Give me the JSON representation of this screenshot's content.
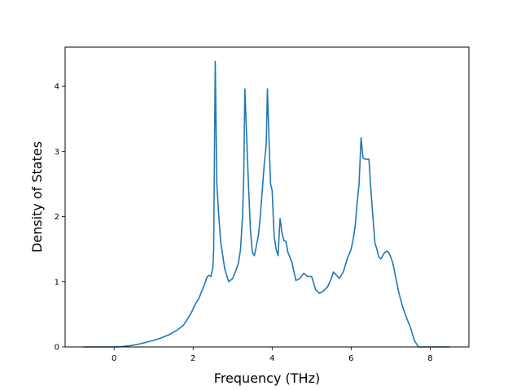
{
  "chart_data": {
    "type": "line",
    "title": "",
    "xlabel": "Frequency (THz)",
    "ylabel": "Density of States",
    "xlim": [
      -1.24,
      8.98
    ],
    "ylim": [
      0,
      4.6
    ],
    "xticks": [
      0,
      2,
      4,
      6,
      8
    ],
    "yticks": [
      0,
      1,
      2,
      3,
      4
    ],
    "grid": false,
    "legend": "none",
    "series": [
      {
        "color": "#1f77b4",
        "x": [
          -0.78,
          -0.5,
          -0.25,
          0.0,
          0.2,
          0.4,
          0.6,
          0.8,
          1.0,
          1.2,
          1.4,
          1.6,
          1.75,
          1.85,
          1.95,
          2.05,
          2.15,
          2.2,
          2.25,
          2.3,
          2.35,
          2.4,
          2.45,
          2.5,
          2.52,
          2.56,
          2.6,
          2.65,
          2.7,
          2.8,
          2.9,
          3.0,
          3.1,
          3.15,
          3.2,
          3.25,
          3.28,
          3.31,
          3.35,
          3.4,
          3.45,
          3.5,
          3.55,
          3.6,
          3.65,
          3.7,
          3.75,
          3.8,
          3.85,
          3.88,
          3.92,
          3.96,
          4.0,
          4.05,
          4.1,
          4.15,
          4.2,
          4.25,
          4.3,
          4.35,
          4.4,
          4.5,
          4.6,
          4.7,
          4.8,
          4.9,
          5.0,
          5.1,
          5.2,
          5.3,
          5.4,
          5.5,
          5.55,
          5.6,
          5.7,
          5.8,
          5.9,
          6.0,
          6.05,
          6.1,
          6.15,
          6.2,
          6.25,
          6.3,
          6.35,
          6.4,
          6.45,
          6.5,
          6.55,
          6.6,
          6.65,
          6.7,
          6.75,
          6.8,
          6.85,
          6.9,
          6.95,
          7.0,
          7.05,
          7.1,
          7.2,
          7.3,
          7.4,
          7.5,
          7.6,
          7.7,
          7.8,
          8.0,
          8.3,
          8.5
        ],
        "y": [
          0.0,
          0.0,
          0.0,
          0.0,
          0.005,
          0.02,
          0.04,
          0.07,
          0.1,
          0.14,
          0.19,
          0.26,
          0.33,
          0.42,
          0.52,
          0.65,
          0.75,
          0.83,
          0.9,
          0.98,
          1.07,
          1.1,
          1.08,
          1.22,
          1.5,
          4.38,
          2.5,
          2.0,
          1.6,
          1.2,
          1.0,
          1.05,
          1.2,
          1.3,
          1.5,
          2.0,
          2.6,
          3.96,
          3.3,
          2.5,
          1.8,
          1.45,
          1.4,
          1.55,
          1.7,
          2.0,
          2.4,
          2.8,
          3.1,
          3.96,
          3.2,
          2.5,
          2.4,
          1.7,
          1.5,
          1.4,
          1.97,
          1.75,
          1.63,
          1.62,
          1.45,
          1.3,
          1.02,
          1.05,
          1.13,
          1.08,
          1.08,
          0.88,
          0.82,
          0.86,
          0.92,
          1.05,
          1.15,
          1.12,
          1.05,
          1.15,
          1.35,
          1.5,
          1.65,
          1.85,
          2.2,
          2.5,
          3.21,
          2.9,
          2.88,
          2.88,
          2.88,
          2.4,
          2.0,
          1.6,
          1.5,
          1.38,
          1.35,
          1.4,
          1.45,
          1.47,
          1.45,
          1.38,
          1.3,
          1.15,
          0.85,
          0.62,
          0.45,
          0.3,
          0.1,
          0.0,
          0.0,
          0.0,
          0.0,
          0.0
        ]
      }
    ]
  }
}
